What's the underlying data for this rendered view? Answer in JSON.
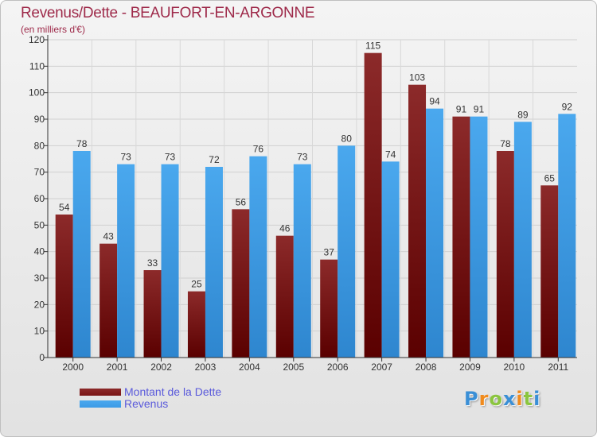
{
  "title": "Revenus/Dette - BEAUFORT-EN-ARGONNE",
  "subtitle": "(en milliers d'€)",
  "brand": {
    "letters": [
      {
        "ch": "P",
        "color": "#3a8fd6"
      },
      {
        "ch": "r",
        "color": "#f08a1c"
      },
      {
        "ch": "o",
        "color": "#8bc53f"
      },
      {
        "ch": "x",
        "color": "#3a8fd6"
      },
      {
        "ch": "i",
        "color": "#f08a1c"
      },
      {
        "ch": "t",
        "color": "#8bc53f"
      },
      {
        "ch": "i",
        "color": "#3a8fd6"
      }
    ]
  },
  "chart_data": {
    "type": "bar",
    "title": "Revenus/Dette - BEAUFORT-EN-ARGONNE",
    "subtitle": "(en milliers d'€)",
    "categories": [
      "2000",
      "2001",
      "2002",
      "2003",
      "2004",
      "2005",
      "2006",
      "2007",
      "2008",
      "2009",
      "2010",
      "2011"
    ],
    "series": [
      {
        "name": "Montant de la Dette",
        "color": "#7a1414",
        "values": [
          54,
          43,
          33,
          25,
          56,
          46,
          37,
          115,
          103,
          91,
          78,
          65
        ]
      },
      {
        "name": "Revenus",
        "color": "#3d9be6",
        "values": [
          78,
          73,
          73,
          72,
          76,
          73,
          80,
          74,
          94,
          91,
          89,
          92
        ]
      }
    ],
    "ylim": [
      0,
      120
    ],
    "yticks": [
      0,
      10,
      20,
      30,
      40,
      50,
      60,
      70,
      80,
      90,
      100,
      110,
      120
    ],
    "grid": true,
    "legend": "bottom-left",
    "data_labels": true
  }
}
